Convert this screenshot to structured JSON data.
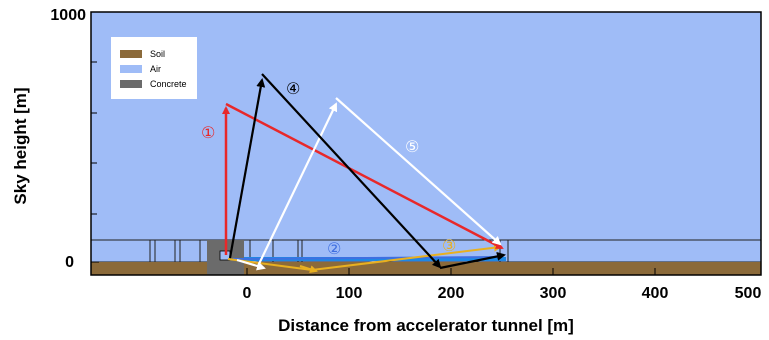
{
  "axes": {
    "xlabel": "Distance from accelerator tunnel  [m]",
    "ylabel": "Sky height [m]",
    "x_ticks": [
      "0",
      "100",
      "200",
      "300",
      "400",
      "500"
    ],
    "y_ticks": [
      "0",
      "1000"
    ],
    "xlim": [
      -130,
      500
    ],
    "ylim": [
      -30,
      1000
    ]
  },
  "legend": {
    "items": [
      {
        "label": "Soil",
        "color": "#8b6a3a"
      },
      {
        "label": "Air",
        "color": "#9fbcf7"
      },
      {
        "label": "Concrete",
        "color": "#6b6b6b"
      }
    ]
  },
  "paths": [
    {
      "label": "①",
      "color": "#e8282a"
    },
    {
      "label": "②",
      "color": "#3f6fe0"
    },
    {
      "label": "③",
      "color": "#e8b020"
    },
    {
      "label": "④",
      "color": "#000000"
    },
    {
      "label": "⑤",
      "color": "#ffffff"
    }
  ],
  "colors": {
    "air": "#9fbcf7",
    "soil": "#8b6a3a",
    "concrete": "#6b6b6b",
    "tunnel_water": "#1e88e5"
  }
}
